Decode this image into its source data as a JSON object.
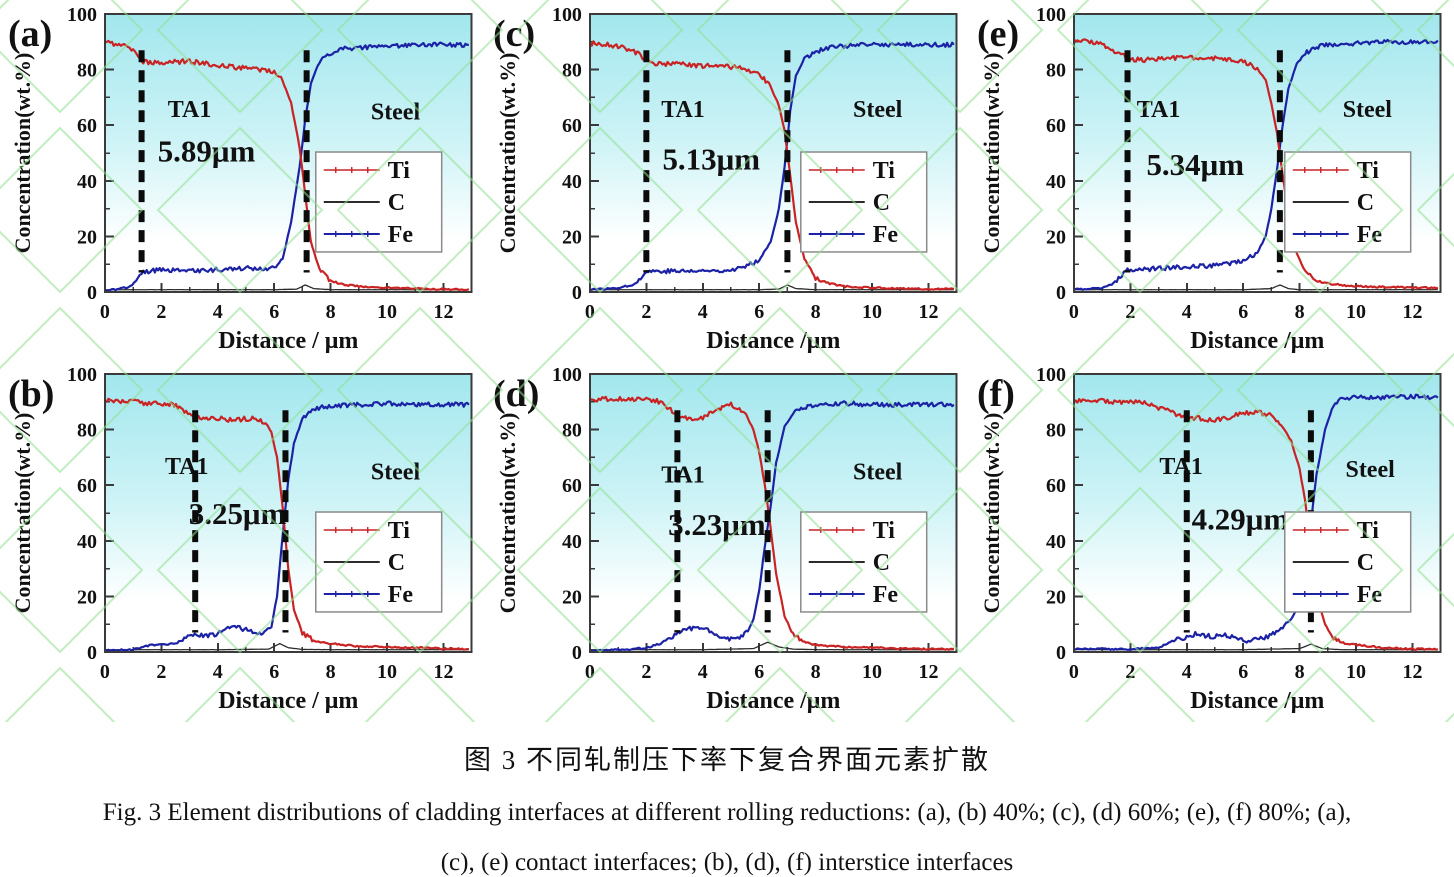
{
  "figure": {
    "caption_zh": "图 3  不同轧制压下率下复合界面元素扩散",
    "caption_en_line1": "Fig. 3 Element distributions of cladding interfaces at different rolling reductions: (a), (b) 40%; (c), (d) 60%; (e), (f) 80%; (a),",
    "caption_en_line2": "(c), (e) contact interfaces; (b), (d), (f) interstice interfaces"
  },
  "colors": {
    "ti": "#c92323",
    "c": "#2b2b2b",
    "fe": "#1c22a5",
    "dashed_line": "#0b0b0b",
    "axis": "#3a3a3a",
    "plot_bg_top": "#a2e7ee",
    "plot_bg_mid": "#cdf3f6",
    "plot_bg_bottom": "#ffffff",
    "watermark_green": "#8fe08f",
    "legend_border": "#8a8a8a",
    "text": "#111111"
  },
  "chart_data": [
    {
      "panel": "(a)",
      "type": "line",
      "xlabel": "Distance / μm",
      "ylabel": "Concentration(wt.%)",
      "xlim": [
        0,
        13
      ],
      "ylim": [
        0,
        100
      ],
      "xticks": [
        0,
        2,
        4,
        6,
        8,
        10,
        12
      ],
      "yticks": [
        0,
        20,
        40,
        60,
        80,
        100
      ],
      "legend": [
        "Ti",
        "C",
        "Fe"
      ],
      "measurement": "5.89μm",
      "measurement_pos": [
        3.6,
        47
      ],
      "ta1_label": "TA1",
      "ta1_pos": [
        3.0,
        63
      ],
      "steel_label": "Steel",
      "steel_pos": [
        10.3,
        62
      ],
      "dashed_lines_x": [
        1.3,
        7.15
      ],
      "series": [
        {
          "name": "Ti",
          "x": [
            0,
            0.5,
            1,
            1.3,
            1.6,
            2,
            3,
            4,
            5,
            5.5,
            6,
            6.3,
            6.6,
            6.9,
            7.1,
            7.3,
            7.6,
            8,
            8.5,
            9,
            10,
            11,
            12,
            12.9
          ],
          "y": [
            90,
            89,
            87.5,
            83,
            82.5,
            82.5,
            83,
            81.5,
            80.5,
            80,
            79,
            76,
            68,
            52,
            35,
            18,
            8,
            4,
            2.5,
            2,
            1.5,
            1.2,
            1,
            1
          ]
        },
        {
          "name": "C",
          "x": [
            0,
            2,
            4,
            6,
            6.8,
            7.1,
            7.4,
            8,
            10,
            12.9
          ],
          "y": [
            0.8,
            0.8,
            0.8,
            0.8,
            1,
            2.5,
            1.2,
            0.8,
            0.8,
            0.8
          ]
        },
        {
          "name": "Fe",
          "x": [
            0,
            0.5,
            0.9,
            1.1,
            1.3,
            1.6,
            2,
            3,
            4,
            5,
            5.5,
            6,
            6.3,
            6.6,
            6.9,
            7.1,
            7.3,
            7.6,
            8,
            8.5,
            9,
            10,
            11,
            12,
            12.9
          ],
          "y": [
            0.5,
            1,
            2,
            4,
            7,
            7.5,
            8,
            7.5,
            8,
            8.5,
            8.5,
            8.5,
            12,
            25,
            45,
            62,
            75,
            83,
            86,
            87.5,
            88,
            88.5,
            89,
            89,
            89
          ]
        }
      ]
    },
    {
      "panel": "(c)",
      "type": "line",
      "xlabel": "Distance /μm",
      "ylabel": "Concentration(wt.%)",
      "xlim": [
        0,
        13
      ],
      "ylim": [
        0,
        100
      ],
      "xticks": [
        0,
        2,
        4,
        6,
        8,
        10,
        12
      ],
      "yticks": [
        0,
        20,
        40,
        60,
        80,
        100
      ],
      "legend": [
        "Ti",
        "C",
        "Fe"
      ],
      "measurement": "5.13μm",
      "measurement_pos": [
        4.3,
        44
      ],
      "ta1_label": "TA1",
      "ta1_pos": [
        3.3,
        63
      ],
      "steel_label": "Steel",
      "steel_pos": [
        10.2,
        63
      ],
      "dashed_lines_x": [
        2.0,
        7.0
      ],
      "series": [
        {
          "name": "Ti",
          "x": [
            0,
            0.5,
            1,
            1.5,
            1.8,
            2,
            2.2,
            3,
            4,
            5,
            5.5,
            6,
            6.4,
            6.7,
            6.9,
            7.1,
            7.3,
            7.6,
            8,
            8.5,
            9,
            10,
            11,
            12,
            12.9
          ],
          "y": [
            89.5,
            89,
            88.5,
            87,
            85,
            83,
            82,
            82,
            81.5,
            81,
            80.5,
            78.5,
            74,
            67,
            58,
            42,
            25,
            12,
            5,
            3,
            2,
            1.5,
            1.2,
            1,
            1
          ]
        },
        {
          "name": "C",
          "x": [
            0,
            2,
            4,
            6,
            6.7,
            7,
            7.3,
            8,
            10,
            12.9
          ],
          "y": [
            0.8,
            0.8,
            0.8,
            0.8,
            1,
            2.5,
            1.2,
            0.8,
            0.8,
            0.8
          ]
        },
        {
          "name": "Fe",
          "x": [
            0,
            0.5,
            1,
            1.5,
            1.8,
            2,
            3,
            4,
            5,
            5.5,
            6,
            6.4,
            6.7,
            6.9,
            7.1,
            7.3,
            7.6,
            8,
            8.5,
            9,
            10,
            11,
            12,
            12.9
          ],
          "y": [
            1,
            1,
            1.5,
            2.5,
            4.5,
            7.5,
            7.5,
            7.5,
            8,
            9,
            11.5,
            18,
            30,
            45,
            65,
            78,
            84,
            86.5,
            88,
            88.5,
            89,
            89,
            89,
            89
          ]
        }
      ]
    },
    {
      "panel": "(e)",
      "type": "line",
      "xlabel": "Distance /μm",
      "ylabel": "Concentration(wt.%)",
      "xlim": [
        0,
        13
      ],
      "ylim": [
        0,
        100
      ],
      "xticks": [
        0,
        2,
        4,
        6,
        8,
        10,
        12
      ],
      "yticks": [
        0,
        20,
        40,
        60,
        80,
        100
      ],
      "legend": [
        "Ti",
        "C",
        "Fe"
      ],
      "measurement": "5.34μm",
      "measurement_pos": [
        4.3,
        42
      ],
      "ta1_label": "TA1",
      "ta1_pos": [
        3.0,
        63
      ],
      "steel_label": "Steel",
      "steel_pos": [
        10.4,
        63
      ],
      "dashed_lines_x": [
        1.9,
        7.3
      ],
      "series": [
        {
          "name": "Ti",
          "x": [
            0,
            0.5,
            1,
            1.5,
            1.9,
            2.5,
            3,
            4,
            5,
            6,
            6.5,
            6.8,
            7,
            7.2,
            7.4,
            7.6,
            7.9,
            8.2,
            8.6,
            9,
            10,
            11,
            12,
            12.9
          ],
          "y": [
            91,
            90.5,
            89,
            86.5,
            84,
            83.5,
            84,
            84.5,
            84,
            83,
            80.5,
            76,
            68,
            57,
            42,
            28,
            14,
            7,
            4,
            3,
            2,
            1.8,
            1.5,
            1.5
          ]
        },
        {
          "name": "C",
          "x": [
            0,
            2,
            4,
            6,
            7,
            7.3,
            7.6,
            8,
            10,
            12.9
          ],
          "y": [
            0.8,
            0.8,
            0.8,
            0.8,
            1.2,
            2.5,
            1.2,
            0.8,
            0.8,
            0.8
          ]
        },
        {
          "name": "Fe",
          "x": [
            0,
            0.5,
            1,
            1.4,
            1.7,
            1.9,
            2.5,
            3,
            4,
            5,
            6,
            6.5,
            6.8,
            7,
            7.2,
            7.4,
            7.6,
            7.9,
            8.2,
            8.6,
            9,
            10,
            11,
            12,
            12.9
          ],
          "y": [
            1,
            1,
            1.5,
            3,
            6,
            8,
            8,
            8.5,
            9,
            9.5,
            11,
            14,
            20,
            30,
            44,
            60,
            73,
            82,
            86,
            88,
            89,
            89.5,
            90,
            90,
            90.5
          ]
        }
      ]
    },
    {
      "panel": "(b)",
      "type": "line",
      "xlabel": "Distance / μm",
      "ylabel": "Concentration(wt.%)",
      "xlim": [
        0,
        13
      ],
      "ylim": [
        0,
        100
      ],
      "xticks": [
        0,
        2,
        4,
        6,
        8,
        10,
        12
      ],
      "yticks": [
        0,
        20,
        40,
        60,
        80,
        100
      ],
      "legend": [
        "Ti",
        "C",
        "Fe"
      ],
      "measurement": "3.25μm",
      "measurement_pos": [
        4.7,
        46
      ],
      "ta1_label": "TA1",
      "ta1_pos": [
        2.9,
        64
      ],
      "steel_label": "Steel",
      "steel_pos": [
        10.3,
        62
      ],
      "dashed_lines_x": [
        3.2,
        6.4
      ],
      "series": [
        {
          "name": "Ti",
          "x": [
            0,
            0.5,
            1,
            1.5,
            2,
            2.4,
            2.7,
            3,
            3.2,
            3.6,
            4,
            4.5,
            5,
            5.4,
            5.7,
            5.9,
            6.1,
            6.3,
            6.5,
            6.7,
            7,
            7.4,
            8,
            9,
            10,
            11,
            12,
            12.9
          ],
          "y": [
            90.5,
            90,
            90,
            89.5,
            89.5,
            89,
            87.5,
            85.5,
            84.5,
            84,
            84,
            83.5,
            84,
            84,
            82.5,
            79,
            70,
            52,
            30,
            15,
            7,
            4,
            3,
            2,
            1.8,
            1.5,
            1.2,
            1
          ]
        },
        {
          "name": "C",
          "x": [
            0,
            2,
            4,
            5.8,
            6.2,
            6.5,
            7,
            8,
            10,
            12.9
          ],
          "y": [
            0.8,
            0.8,
            0.8,
            1,
            3,
            1.5,
            0.9,
            0.8,
            0.8,
            0.8
          ]
        },
        {
          "name": "Fe",
          "x": [
            0,
            1,
            1.4,
            1.7,
            2,
            2.5,
            3,
            3.3,
            3.6,
            4,
            4.3,
            4.6,
            5,
            5.3,
            5.6,
            5.9,
            6.1,
            6.3,
            6.5,
            6.7,
            7,
            7.4,
            8,
            9,
            10,
            11,
            12,
            12.9
          ],
          "y": [
            0.5,
            0.8,
            2,
            2.5,
            2.5,
            3,
            5.5,
            6,
            6,
            6.5,
            8.5,
            9,
            8,
            7,
            7,
            9,
            20,
            42,
            62,
            75,
            84,
            87.5,
            88.5,
            89,
            89.5,
            89,
            89,
            89
          ]
        }
      ]
    },
    {
      "panel": "(d)",
      "type": "line",
      "xlabel": "Distance /μm",
      "ylabel": "Concentration(wt.%)",
      "xlim": [
        0,
        13
      ],
      "ylim": [
        0,
        100
      ],
      "xticks": [
        0,
        2,
        4,
        6,
        8,
        10,
        12
      ],
      "yticks": [
        0,
        20,
        40,
        60,
        80,
        100
      ],
      "legend": [
        "Ti",
        "C",
        "Fe"
      ],
      "measurement": "3.23μm",
      "measurement_pos": [
        4.5,
        42
      ],
      "ta1_label": "TA1",
      "ta1_pos": [
        3.3,
        61
      ],
      "steel_label": "Steel",
      "steel_pos": [
        10.2,
        62
      ],
      "dashed_lines_x": [
        3.1,
        6.3
      ],
      "series": [
        {
          "name": "Ti",
          "x": [
            0,
            0.5,
            1,
            1.5,
            2,
            2.5,
            2.8,
            3.1,
            3.5,
            4,
            4.4,
            4.8,
            5,
            5.3,
            5.6,
            5.8,
            6,
            6.2,
            6.4,
            6.6,
            6.9,
            7.2,
            7.6,
            8,
            9,
            10,
            11,
            12,
            12.9
          ],
          "y": [
            90.5,
            91,
            91,
            91,
            91,
            90,
            87.5,
            85,
            84,
            84.5,
            86.5,
            88.5,
            89,
            87.5,
            84,
            80,
            72,
            60,
            45,
            28,
            13,
            6,
            3.5,
            2.5,
            1.8,
            1.5,
            1.2,
            1,
            1
          ]
        },
        {
          "name": "C",
          "x": [
            0,
            2,
            4,
            5.8,
            6.3,
            6.7,
            7.2,
            8,
            10,
            12.9
          ],
          "y": [
            0.8,
            0.8,
            0.8,
            1.2,
            3.5,
            1.8,
            1,
            0.8,
            0.8,
            0.8
          ]
        },
        {
          "name": "Fe",
          "x": [
            0,
            1,
            1.5,
            2,
            2.5,
            3,
            3.3,
            3.6,
            4,
            4.3,
            4.6,
            5,
            5.3,
            5.6,
            5.8,
            6,
            6.2,
            6.4,
            6.6,
            6.9,
            7.2,
            7.6,
            8,
            9,
            10,
            11,
            12,
            12.9
          ],
          "y": [
            0.5,
            0.8,
            1,
            1.5,
            3,
            6,
            8,
            8.5,
            8.5,
            7.5,
            5.5,
            4.5,
            5,
            7.5,
            12,
            22,
            38,
            52,
            68,
            81,
            86,
            88,
            88.5,
            89.5,
            89,
            89,
            89,
            89
          ]
        }
      ]
    },
    {
      "panel": "(f)",
      "type": "line",
      "xlabel": "Distance /μm",
      "ylabel": "Concentration(wt.%)",
      "xlim": [
        0,
        13
      ],
      "ylim": [
        0,
        100
      ],
      "xticks": [
        0,
        2,
        4,
        6,
        8,
        10,
        12
      ],
      "yticks": [
        0,
        20,
        40,
        60,
        80,
        100
      ],
      "legend": [
        "Ti",
        "C",
        "Fe"
      ],
      "measurement": "4.29μm",
      "measurement_pos": [
        5.9,
        44
      ],
      "ta1_label": "TA1",
      "ta1_pos": [
        3.8,
        64
      ],
      "steel_label": "Steel",
      "steel_pos": [
        10.5,
        63
      ],
      "dashed_lines_x": [
        4.0,
        8.4
      ],
      "series": [
        {
          "name": "Ti",
          "x": [
            0,
            0.5,
            1,
            1.5,
            2,
            2.5,
            3,
            3.5,
            4,
            4.5,
            5,
            5.5,
            6,
            6.5,
            7,
            7.4,
            7.7,
            8,
            8.2,
            8.4,
            8.6,
            8.9,
            9.2,
            9.6,
            10,
            11,
            12,
            12.9
          ],
          "y": [
            90,
            90.5,
            90.5,
            90,
            90,
            89.5,
            88,
            86,
            84.5,
            84,
            83.5,
            84.5,
            86,
            86.5,
            85,
            81,
            76,
            66,
            54,
            36,
            20,
            10,
            5,
            3,
            2.5,
            1.5,
            1,
            1
          ]
        },
        {
          "name": "C",
          "x": [
            0,
            2,
            4,
            6,
            8,
            8.4,
            8.8,
            9.5,
            10,
            12.9
          ],
          "y": [
            0.8,
            0.8,
            0.8,
            0.8,
            1.2,
            2.8,
            1.2,
            0.8,
            0.8,
            0.8
          ]
        },
        {
          "name": "Fe",
          "x": [
            0,
            1,
            2,
            3,
            3.3,
            3.6,
            4,
            4.3,
            4.6,
            5,
            5.3,
            5.6,
            6,
            6.5,
            7,
            7.4,
            7.7,
            8,
            8.2,
            8.4,
            8.6,
            8.9,
            9.2,
            9.5,
            10,
            11,
            12,
            12.9
          ],
          "y": [
            1,
            1,
            1,
            1.5,
            3,
            4.5,
            5,
            6.5,
            6,
            5.5,
            6.5,
            5.5,
            4,
            4.5,
            6,
            9,
            12,
            17,
            28,
            46,
            64,
            80,
            89,
            91,
            92,
            91.5,
            92,
            91.5
          ]
        }
      ]
    }
  ]
}
